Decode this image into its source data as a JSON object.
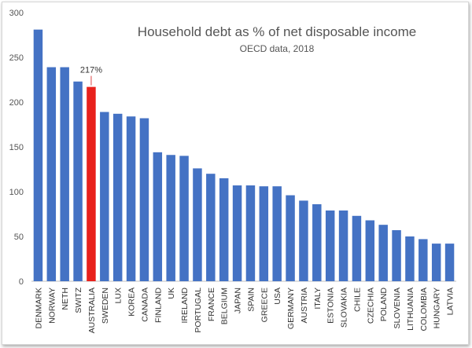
{
  "chart_data": {
    "type": "bar",
    "title": "Household debt as % of net disposable income",
    "subtitle": "OECD data, 2018",
    "xlabel": "",
    "ylabel": "",
    "ylim": [
      0,
      300
    ],
    "yticks": [
      0,
      50,
      100,
      150,
      200,
      250,
      300
    ],
    "grid": false,
    "categories": [
      "DENMARK",
      "NORWAY",
      "NETH",
      "SWITZ",
      "AUSTRALIA",
      "SWEDEN",
      "LUX",
      "KOREA",
      "CANADA",
      "FINLAND",
      "UK",
      "IRELAND",
      "PORTUGAL",
      "FRANCE",
      "BELGIUM",
      "JAPAN",
      "SPAIN",
      "GREECE",
      "USA",
      "GERMANY",
      "AUSTRIA",
      "ITALY",
      "ESTONIA",
      "SLOVAKIA",
      "CHILE",
      "CZECHIA",
      "POLAND",
      "SLOVENIA",
      "LITHUANIA",
      "COLOMBIA",
      "HUNGARY",
      "LATVIA"
    ],
    "values": [
      281,
      239,
      239,
      223,
      217,
      189,
      187,
      184,
      182,
      144,
      141,
      140,
      126,
      120,
      115,
      107,
      107,
      106,
      106,
      96,
      90,
      86,
      79,
      79,
      73,
      68,
      63,
      57,
      50,
      47,
      42,
      42
    ],
    "colors": {
      "default": "#4472C4",
      "highlight": "#E8211C"
    },
    "highlight": {
      "category": "AUSTRALIA",
      "label": "217%"
    }
  }
}
